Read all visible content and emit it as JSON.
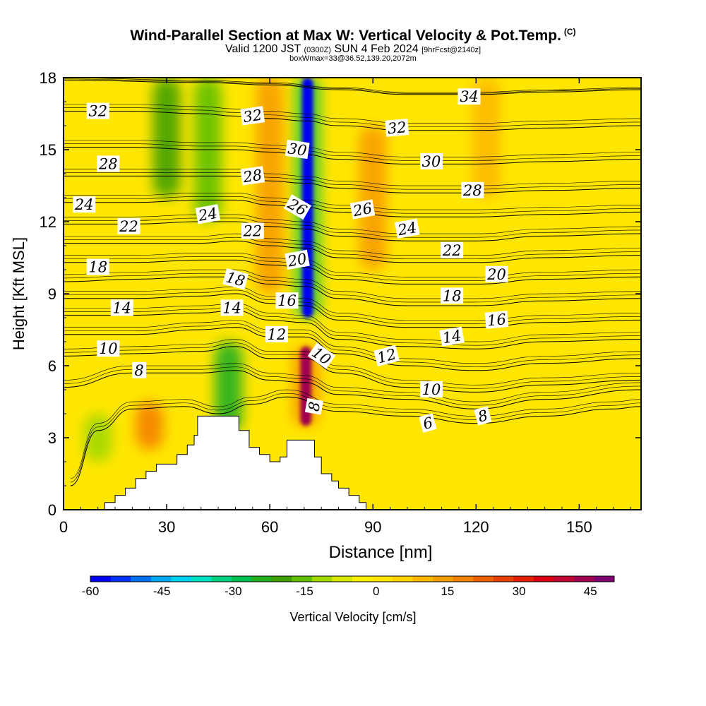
{
  "title": {
    "main": "Wind-Parallel Section at Max W: Vertical Velocity & Pot.Temp.",
    "copyright": "(C)",
    "valid_prefix": "Valid 1200 JST",
    "valid_utc": "(0300Z)",
    "valid_date": "SUN 4 Feb 2024",
    "forecast": "[9hrFcst@2140z]",
    "boxline": "boxWmax=33@36.52,139.20,2072m"
  },
  "colorbar": {
    "label": "Vertical Velocity [cm/s]",
    "ticks": [
      "-60",
      "-45",
      "-30",
      "-15",
      "0",
      "15",
      "30",
      "45"
    ],
    "tick_values": [
      -60,
      -45,
      -30,
      -15,
      0,
      15,
      30,
      45
    ],
    "range": [
      -60,
      50
    ],
    "colors": [
      "#0000f0",
      "#0030f5",
      "#0070f5",
      "#00a8f5",
      "#00d0f0",
      "#00e0c0",
      "#00d080",
      "#00c050",
      "#20b020",
      "#40a000",
      "#60c000",
      "#a0d800",
      "#d8e800",
      "#f8f000",
      "#ffe600",
      "#fed200",
      "#fcb800",
      "#f89c00",
      "#f48000",
      "#f06000",
      "#e84000",
      "#e02000",
      "#d80010",
      "#c00030",
      "#a00050",
      "#800070"
    ]
  },
  "chart_data": {
    "type": "heatmap",
    "title": "Wind-Parallel Section at Max W: Vertical Velocity & Pot.Temp.",
    "xlabel": "Distance [nm]",
    "ylabel": "Height [Kft MSL]",
    "xlim": [
      0,
      168
    ],
    "ylim": [
      0,
      18
    ],
    "x_ticks": [
      "0",
      "30",
      "60",
      "90",
      "120",
      "150"
    ],
    "x_tick_values": [
      0,
      30,
      60,
      90,
      120,
      150
    ],
    "y_ticks": [
      "0",
      "3",
      "6",
      "9",
      "12",
      "15",
      "18"
    ],
    "y_tick_values": [
      0,
      3,
      6,
      9,
      12,
      15,
      18
    ],
    "field": "Vertical Velocity [cm/s]",
    "velocity_features": [
      {
        "x": 71,
        "y0": 8,
        "y1": 18,
        "w": -60,
        "label": "downdraft column"
      },
      {
        "x": 70.5,
        "y0": 3.5,
        "y1": 6.8,
        "w": 45,
        "label": "updraft core"
      },
      {
        "x": 48,
        "y0": 3.2,
        "y1": 7.0,
        "w": -25
      },
      {
        "x": 25,
        "y0": 2.5,
        "y1": 4.5,
        "w": 20
      },
      {
        "x": 42,
        "y0": 12,
        "y1": 18,
        "w": -15
      },
      {
        "x": 30,
        "y0": 13,
        "y1": 18,
        "w": -20
      },
      {
        "x": 60,
        "y0": 9,
        "y1": 18,
        "w": 15
      },
      {
        "x": 90,
        "y0": 10,
        "y1": 16,
        "w": 12
      },
      {
        "x": 123,
        "y0": 13,
        "y1": 18,
        "w": 10
      },
      {
        "x": 10,
        "y0": 2,
        "y1": 4,
        "w": -10
      }
    ],
    "terrain": [
      [
        12,
        0
      ],
      [
        12,
        0.3
      ],
      [
        15,
        0.3
      ],
      [
        15,
        0.6
      ],
      [
        18,
        0.6
      ],
      [
        18,
        0.9
      ],
      [
        21,
        0.9
      ],
      [
        21,
        1.3
      ],
      [
        24,
        1.3
      ],
      [
        24,
        1.6
      ],
      [
        27,
        1.6
      ],
      [
        27,
        1.9
      ],
      [
        33,
        1.9
      ],
      [
        33,
        2.3
      ],
      [
        36,
        2.3
      ],
      [
        36,
        2.7
      ],
      [
        38,
        2.7
      ],
      [
        38,
        3.1
      ],
      [
        39,
        3.1
      ],
      [
        39,
        3.9
      ],
      [
        51,
        3.9
      ],
      [
        51,
        3.3
      ],
      [
        54,
        3.3
      ],
      [
        54,
        2.6
      ],
      [
        57,
        2.6
      ],
      [
        57,
        2.3
      ],
      [
        60,
        2.3
      ],
      [
        60,
        2.0
      ],
      [
        63,
        2.0
      ],
      [
        63,
        2.2
      ],
      [
        65,
        2.2
      ],
      [
        65,
        2.9
      ],
      [
        73,
        2.9
      ],
      [
        73,
        2.2
      ],
      [
        75,
        2.2
      ],
      [
        75,
        1.5
      ],
      [
        78,
        1.5
      ],
      [
        78,
        1.2
      ],
      [
        80,
        1.2
      ],
      [
        80,
        0.9
      ],
      [
        83,
        0.9
      ],
      [
        83,
        0.6
      ],
      [
        86,
        0.6
      ],
      [
        86,
        0.3
      ],
      [
        88,
        0.3
      ],
      [
        88,
        0
      ]
    ],
    "contour_series": [
      {
        "name": "6",
        "level": 6,
        "points": [
          [
            2,
            1.0
          ],
          [
            10,
            3.3
          ],
          [
            20,
            4.2
          ],
          [
            35,
            4.3
          ],
          [
            45,
            4.0
          ],
          [
            55,
            4.4
          ],
          [
            65,
            4.7
          ],
          [
            80,
            4.1
          ],
          [
            100,
            3.9
          ],
          [
            120,
            3.6
          ],
          [
            140,
            3.9
          ],
          [
            160,
            4.2
          ],
          [
            168,
            4.3
          ]
        ]
      },
      {
        "name": "8",
        "level": 8,
        "points": [
          [
            0,
            5.1
          ],
          [
            20,
            5.7
          ],
          [
            40,
            5.7
          ],
          [
            50,
            5.8
          ],
          [
            60,
            5.4
          ],
          [
            70,
            5.3
          ],
          [
            80,
            4.8
          ],
          [
            100,
            4.6
          ],
          [
            120,
            4.2
          ],
          [
            140,
            4.6
          ],
          [
            168,
            5.0
          ]
        ]
      },
      {
        "name": "10",
        "level": 10,
        "points": [
          [
            0,
            6.4
          ],
          [
            20,
            6.5
          ],
          [
            40,
            6.6
          ],
          [
            50,
            6.8
          ],
          [
            60,
            6.3
          ],
          [
            70,
            6.3
          ],
          [
            80,
            5.7
          ],
          [
            100,
            5.1
          ],
          [
            120,
            4.9
          ],
          [
            140,
            5.2
          ],
          [
            168,
            5.4
          ]
        ]
      },
      {
        "name": "12",
        "level": 12,
        "points": [
          [
            0,
            7.3
          ],
          [
            20,
            7.3
          ],
          [
            40,
            7.5
          ],
          [
            50,
            7.6
          ],
          [
            60,
            7.2
          ],
          [
            70,
            7.2
          ],
          [
            80,
            6.5
          ],
          [
            100,
            6.0
          ],
          [
            120,
            5.8
          ],
          [
            140,
            6.1
          ],
          [
            168,
            6.3
          ]
        ]
      },
      {
        "name": "14",
        "level": 14,
        "points": [
          [
            0,
            8.1
          ],
          [
            20,
            8.1
          ],
          [
            40,
            8.2
          ],
          [
            50,
            8.3
          ],
          [
            60,
            7.9
          ],
          [
            70,
            7.8
          ],
          [
            80,
            7.1
          ],
          [
            100,
            6.8
          ],
          [
            120,
            6.7
          ],
          [
            140,
            7.0
          ],
          [
            168,
            7.1
          ]
        ]
      },
      {
        "name": "16",
        "level": 16,
        "points": [
          [
            0,
            8.8
          ],
          [
            20,
            8.8
          ],
          [
            40,
            8.9
          ],
          [
            50,
            9.0
          ],
          [
            60,
            8.6
          ],
          [
            70,
            8.5
          ],
          [
            80,
            7.9
          ],
          [
            100,
            7.6
          ],
          [
            120,
            7.6
          ],
          [
            140,
            7.8
          ],
          [
            168,
            7.9
          ]
        ]
      },
      {
        "name": "18",
        "level": 18,
        "points": [
          [
            0,
            9.5
          ],
          [
            20,
            9.6
          ],
          [
            40,
            9.7
          ],
          [
            50,
            9.7
          ],
          [
            60,
            9.4
          ],
          [
            70,
            9.3
          ],
          [
            80,
            8.8
          ],
          [
            100,
            8.5
          ],
          [
            120,
            8.5
          ],
          [
            140,
            8.7
          ],
          [
            168,
            8.8
          ]
        ]
      },
      {
        "name": "20",
        "level": 20,
        "points": [
          [
            0,
            10.3
          ],
          [
            20,
            10.3
          ],
          [
            40,
            10.4
          ],
          [
            50,
            10.4
          ],
          [
            60,
            10.2
          ],
          [
            70,
            10.1
          ],
          [
            80,
            9.6
          ],
          [
            100,
            9.4
          ],
          [
            120,
            9.4
          ],
          [
            140,
            9.6
          ],
          [
            168,
            9.7
          ]
        ]
      },
      {
        "name": "22",
        "level": 22,
        "points": [
          [
            0,
            11.1
          ],
          [
            20,
            11.1
          ],
          [
            40,
            11.1
          ],
          [
            50,
            11.2
          ],
          [
            60,
            11.0
          ],
          [
            70,
            10.9
          ],
          [
            80,
            10.5
          ],
          [
            100,
            10.3
          ],
          [
            120,
            10.3
          ],
          [
            140,
            10.5
          ],
          [
            168,
            10.6
          ]
        ]
      },
      {
        "name": "24",
        "level": 24,
        "points": [
          [
            0,
            11.9
          ],
          [
            20,
            11.9
          ],
          [
            40,
            12.0
          ],
          [
            50,
            12.0
          ],
          [
            60,
            11.8
          ],
          [
            70,
            11.7
          ],
          [
            80,
            11.4
          ],
          [
            100,
            11.2
          ],
          [
            120,
            11.2
          ],
          [
            140,
            11.4
          ],
          [
            168,
            11.5
          ]
        ]
      },
      {
        "name": "26",
        "level": 26,
        "points": [
          [
            0,
            12.8
          ],
          [
            20,
            12.8
          ],
          [
            40,
            12.9
          ],
          [
            50,
            12.9
          ],
          [
            60,
            12.7
          ],
          [
            70,
            12.6
          ],
          [
            80,
            12.4
          ],
          [
            100,
            12.2
          ],
          [
            120,
            12.2
          ],
          [
            140,
            12.3
          ],
          [
            168,
            12.4
          ]
        ]
      },
      {
        "name": "28",
        "level": 28,
        "points": [
          [
            0,
            13.9
          ],
          [
            20,
            13.9
          ],
          [
            40,
            13.9
          ],
          [
            50,
            13.9
          ],
          [
            60,
            13.7
          ],
          [
            70,
            13.6
          ],
          [
            80,
            13.4
          ],
          [
            100,
            13.2
          ],
          [
            120,
            13.2
          ],
          [
            140,
            13.3
          ],
          [
            168,
            13.4
          ]
        ]
      },
      {
        "name": "30",
        "level": 30,
        "points": [
          [
            0,
            15.1
          ],
          [
            20,
            15.1
          ],
          [
            40,
            15.0
          ],
          [
            50,
            15.0
          ],
          [
            60,
            14.9
          ],
          [
            70,
            14.8
          ],
          [
            80,
            14.6
          ],
          [
            100,
            14.4
          ],
          [
            120,
            14.4
          ],
          [
            140,
            14.5
          ],
          [
            168,
            14.6
          ]
        ]
      },
      {
        "name": "32",
        "level": 32,
        "points": [
          [
            0,
            16.6
          ],
          [
            20,
            16.6
          ],
          [
            40,
            16.5
          ],
          [
            50,
            16.4
          ],
          [
            60,
            16.3
          ],
          [
            70,
            16.2
          ],
          [
            80,
            16.0
          ],
          [
            100,
            15.8
          ],
          [
            120,
            15.8
          ],
          [
            140,
            15.9
          ],
          [
            168,
            16.0
          ]
        ]
      },
      {
        "name": "34",
        "level": 34,
        "points": [
          [
            0,
            17.9
          ],
          [
            40,
            17.8
          ],
          [
            60,
            17.7
          ],
          [
            80,
            17.5
          ],
          [
            100,
            17.3
          ],
          [
            120,
            17.3
          ],
          [
            140,
            17.4
          ],
          [
            168,
            17.5
          ]
        ]
      }
    ],
    "contour_labels": [
      {
        "text": "32",
        "x": 10,
        "y": 16.6,
        "rot": 0
      },
      {
        "text": "28",
        "x": 13,
        "y": 14.4,
        "rot": 0
      },
      {
        "text": "24",
        "x": 6,
        "y": 12.7,
        "rot": 0
      },
      {
        "text": "22",
        "x": 19,
        "y": 11.8,
        "rot": 0
      },
      {
        "text": "18",
        "x": 10,
        "y": 10.1,
        "rot": 0
      },
      {
        "text": "14",
        "x": 17,
        "y": 8.4,
        "rot": 0
      },
      {
        "text": "10",
        "x": 13,
        "y": 6.7,
        "rot": 0
      },
      {
        "text": "8",
        "x": 22,
        "y": 5.8,
        "rot": 0
      },
      {
        "text": "32",
        "x": 55,
        "y": 16.4,
        "rot": -8
      },
      {
        "text": "30",
        "x": 68,
        "y": 15.0,
        "rot": 8
      },
      {
        "text": "28",
        "x": 55,
        "y": 13.9,
        "rot": -8
      },
      {
        "text": "24",
        "x": 42,
        "y": 12.3,
        "rot": -10
      },
      {
        "text": "22",
        "x": 55,
        "y": 11.6,
        "rot": 0
      },
      {
        "text": "26",
        "x": 68,
        "y": 12.6,
        "rot": 30
      },
      {
        "text": "20",
        "x": 68,
        "y": 10.4,
        "rot": -10
      },
      {
        "text": "18",
        "x": 50,
        "y": 9.6,
        "rot": 15
      },
      {
        "text": "16",
        "x": 65,
        "y": 8.7,
        "rot": 0
      },
      {
        "text": "14",
        "x": 49,
        "y": 8.4,
        "rot": 0
      },
      {
        "text": "12",
        "x": 62,
        "y": 7.3,
        "rot": 0
      },
      {
        "text": "10",
        "x": 75,
        "y": 6.4,
        "rot": 35
      },
      {
        "text": "8",
        "x": 73,
        "y": 4.3,
        "rot": -80
      },
      {
        "text": "34",
        "x": 118,
        "y": 17.2,
        "rot": 0
      },
      {
        "text": "32",
        "x": 97,
        "y": 15.9,
        "rot": -5
      },
      {
        "text": "30",
        "x": 107,
        "y": 14.5,
        "rot": 0
      },
      {
        "text": "28",
        "x": 119,
        "y": 13.3,
        "rot": 0
      },
      {
        "text": "26",
        "x": 87,
        "y": 12.5,
        "rot": -10
      },
      {
        "text": "24",
        "x": 100,
        "y": 11.7,
        "rot": -10
      },
      {
        "text": "22",
        "x": 113,
        "y": 10.8,
        "rot": 0
      },
      {
        "text": "20",
        "x": 126,
        "y": 9.8,
        "rot": 0
      },
      {
        "text": "18",
        "x": 113,
        "y": 8.9,
        "rot": 0
      },
      {
        "text": "16",
        "x": 126,
        "y": 7.9,
        "rot": -5
      },
      {
        "text": "14",
        "x": 113,
        "y": 7.2,
        "rot": -10
      },
      {
        "text": "12",
        "x": 94,
        "y": 6.4,
        "rot": -15
      },
      {
        "text": "10",
        "x": 107,
        "y": 5.0,
        "rot": 0
      },
      {
        "text": "8",
        "x": 122,
        "y": 3.9,
        "rot": -15
      },
      {
        "text": "6",
        "x": 106,
        "y": 3.6,
        "rot": -15
      }
    ]
  }
}
